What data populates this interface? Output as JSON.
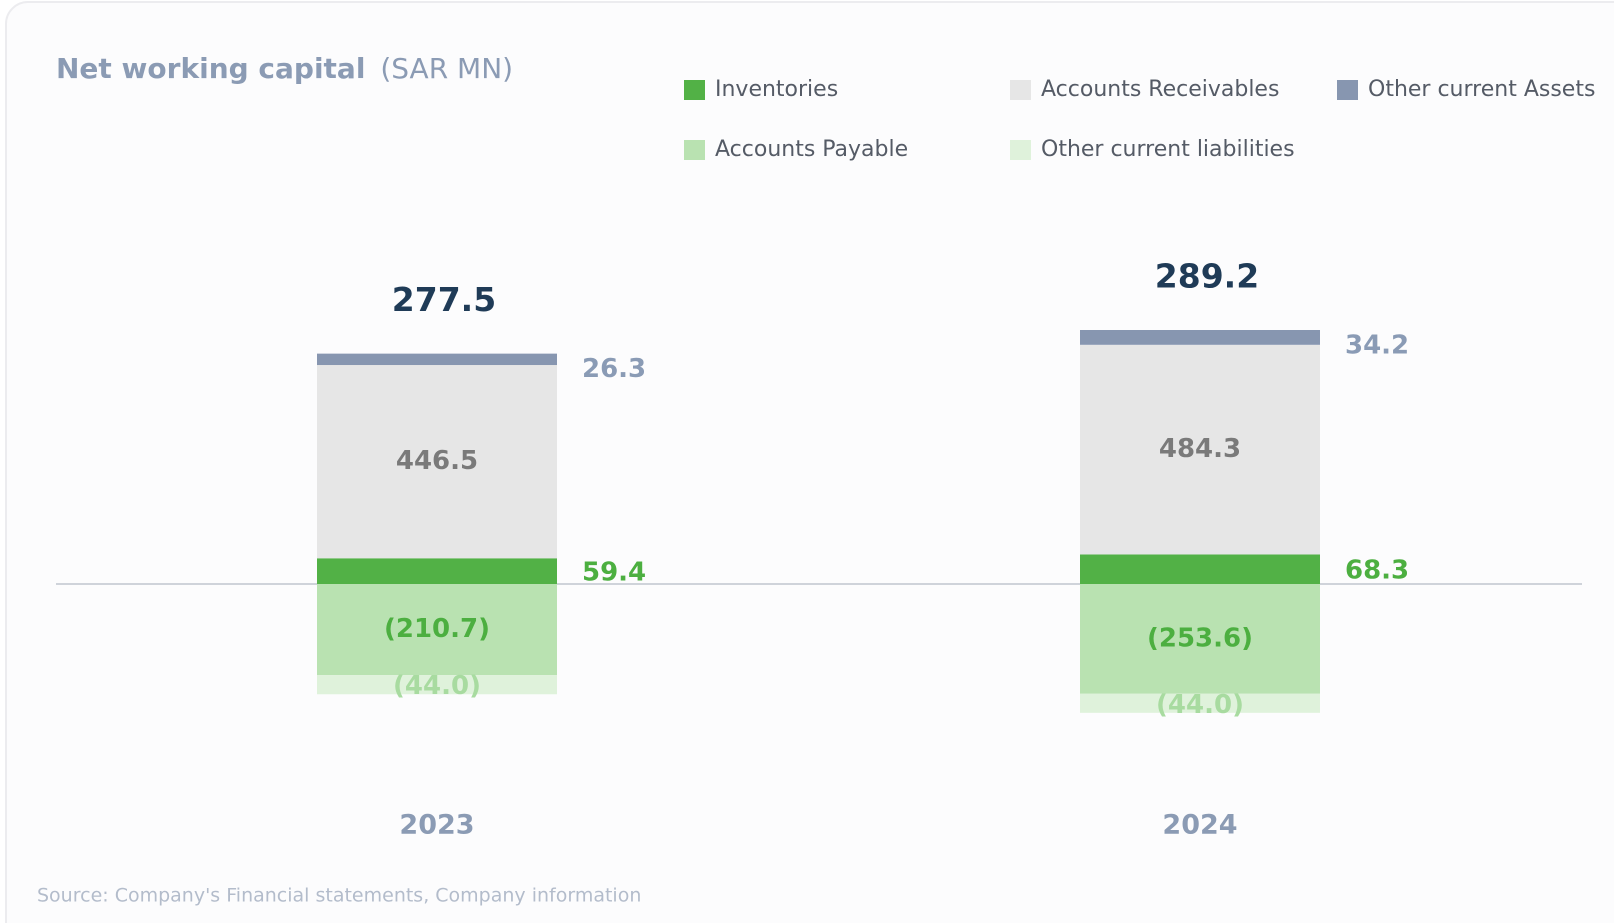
{
  "chart_data": {
    "type": "stacked_bar",
    "title": "Net working capital",
    "subtitle": "(SAR MN)",
    "categories": [
      "2023",
      "2024"
    ],
    "series": [
      {
        "name": "Inventories",
        "color": "#52b146",
        "values": [
          59.4,
          68.3
        ]
      },
      {
        "name": "Accounts Receivables",
        "color": "#e6e6e6",
        "values": [
          446.5,
          484.3
        ]
      },
      {
        "name": "Other current Assets",
        "color": "#8796b0",
        "values": [
          26.3,
          34.2
        ]
      },
      {
        "name": "Accounts Payable",
        "color": "#b9e2b1",
        "values": [
          -210.7,
          -253.6
        ],
        "value_labels": [
          "(210.7)",
          "(253.6)"
        ]
      },
      {
        "name": "Other current liabilities",
        "color": "#dff2db",
        "values": [
          -44.0,
          -44.0
        ],
        "value_labels": [
          "(44.0)",
          "(44.0)"
        ]
      }
    ],
    "totals": [
      277.5,
      289.2
    ],
    "source": "Source: Company's Financial statements, Company information"
  }
}
